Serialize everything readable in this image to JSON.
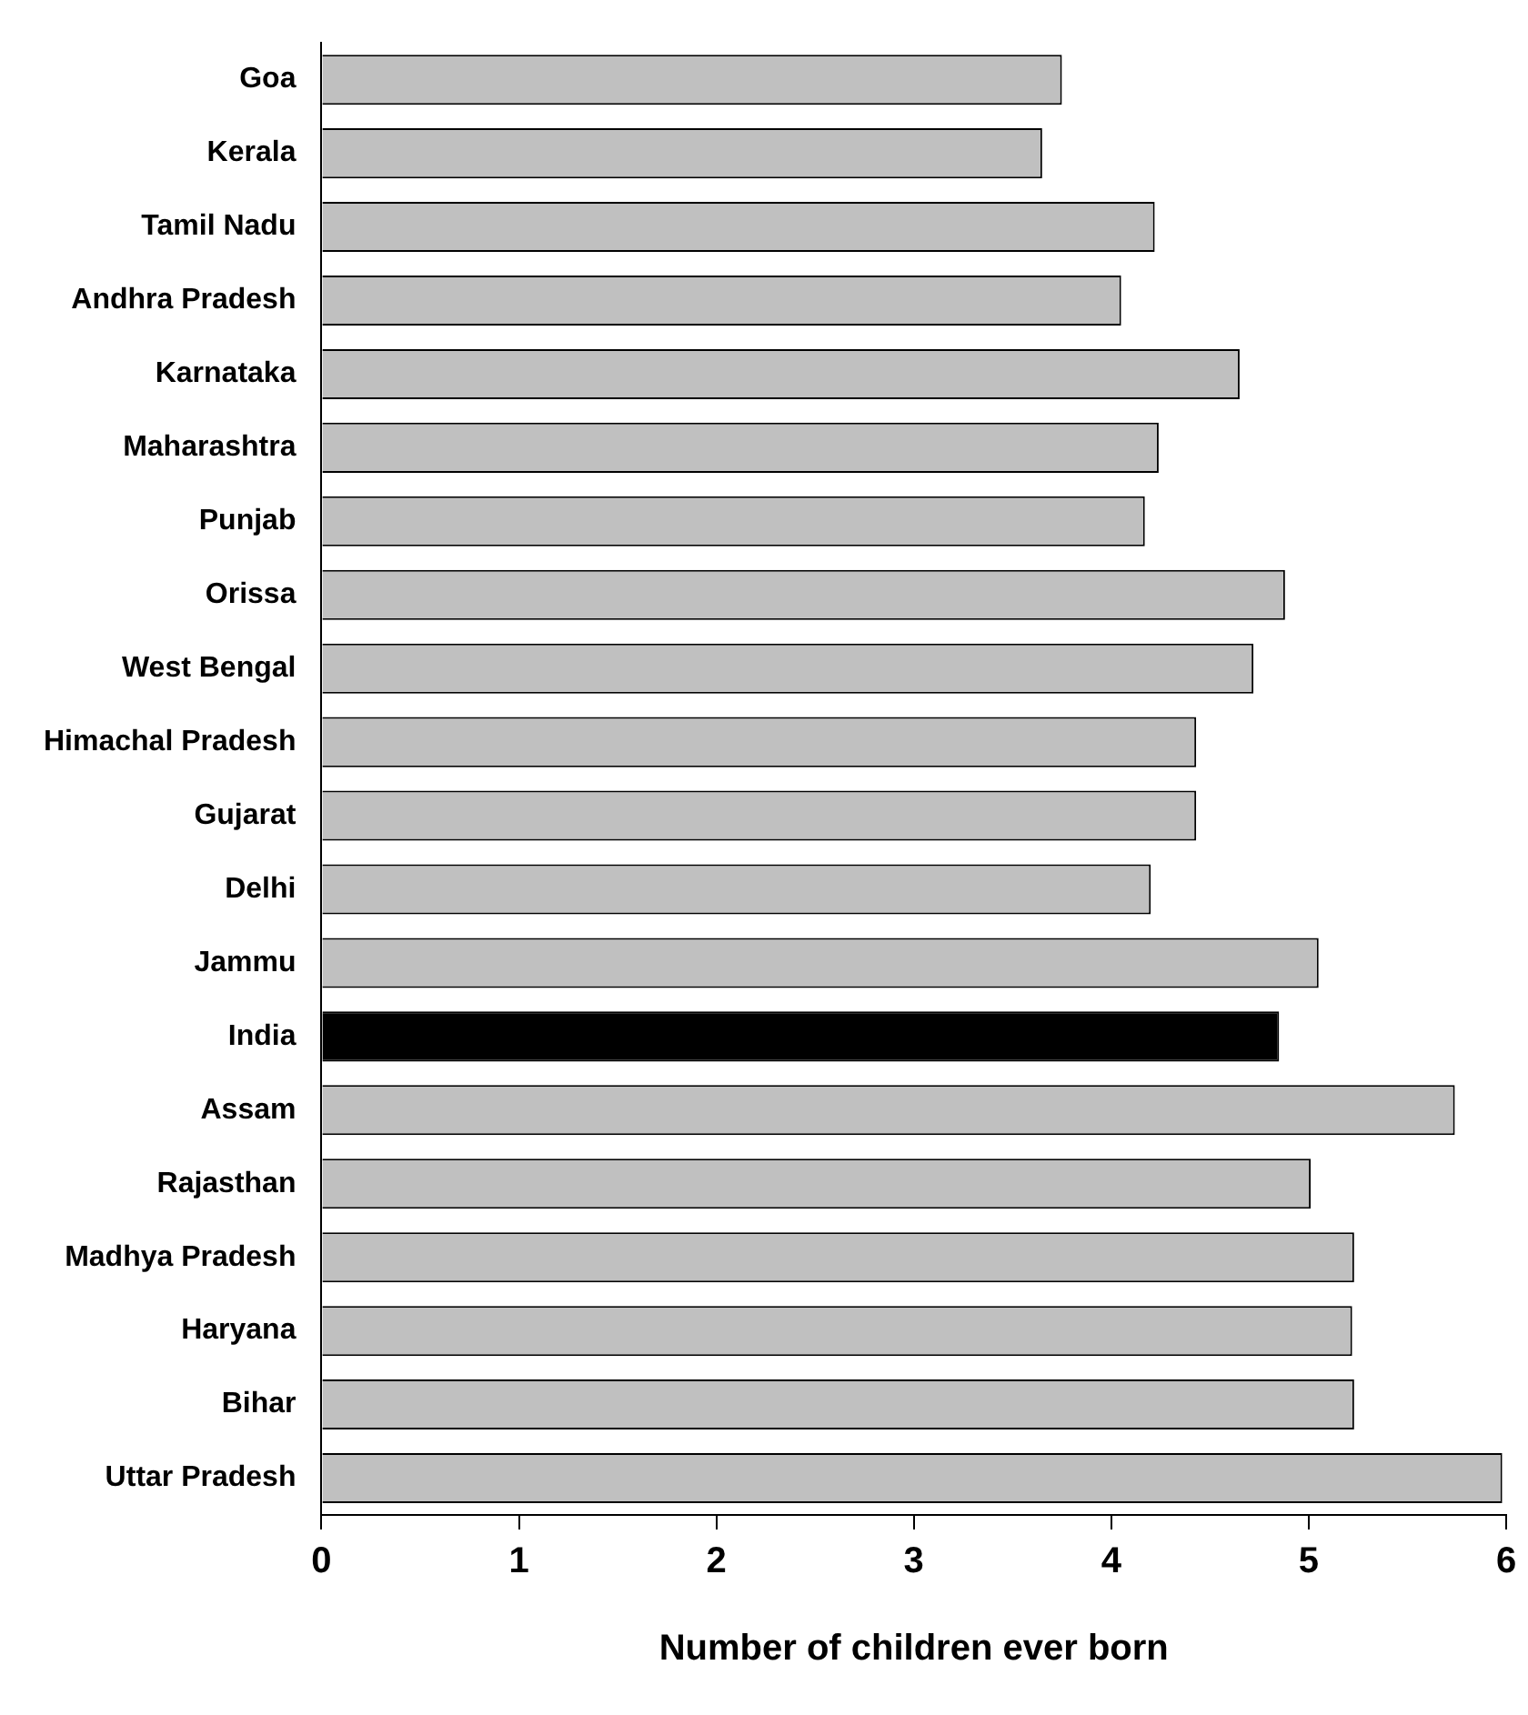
{
  "chart_data": {
    "type": "bar",
    "orientation": "horizontal",
    "xlabel": "Number of children ever born",
    "categories": [
      "Goa",
      "Kerala",
      "Tamil Nadu",
      "Andhra Pradesh",
      "Karnataka",
      "Maharashtra",
      "Punjab",
      "Orissa",
      "West Bengal",
      "Himachal Pradesh",
      "Gujarat",
      "Delhi",
      "Jammu",
      "India",
      "Assam",
      "Rajasthan",
      "Madhya Pradesh",
      "Haryana",
      "Bihar",
      "Uttar Pradesh"
    ],
    "values": [
      3.75,
      3.65,
      4.22,
      4.05,
      4.65,
      4.24,
      4.17,
      4.88,
      4.72,
      4.43,
      4.43,
      4.2,
      5.05,
      4.85,
      5.74,
      5.01,
      5.23,
      5.22,
      5.23,
      5.98
    ],
    "colors": [
      "#c0c0c0",
      "#c0c0c0",
      "#c0c0c0",
      "#c0c0c0",
      "#c0c0c0",
      "#c0c0c0",
      "#c0c0c0",
      "#c0c0c0",
      "#c0c0c0",
      "#c0c0c0",
      "#c0c0c0",
      "#c0c0c0",
      "#c0c0c0",
      "#000000",
      "#c0c0c0",
      "#c0c0c0",
      "#c0c0c0",
      "#c0c0c0",
      "#c0c0c0",
      "#c0c0c0"
    ],
    "xlim": [
      0,
      6
    ],
    "xticks": [
      0,
      1,
      2,
      3,
      4,
      5,
      6
    ],
    "grid": false,
    "legend": false
  }
}
